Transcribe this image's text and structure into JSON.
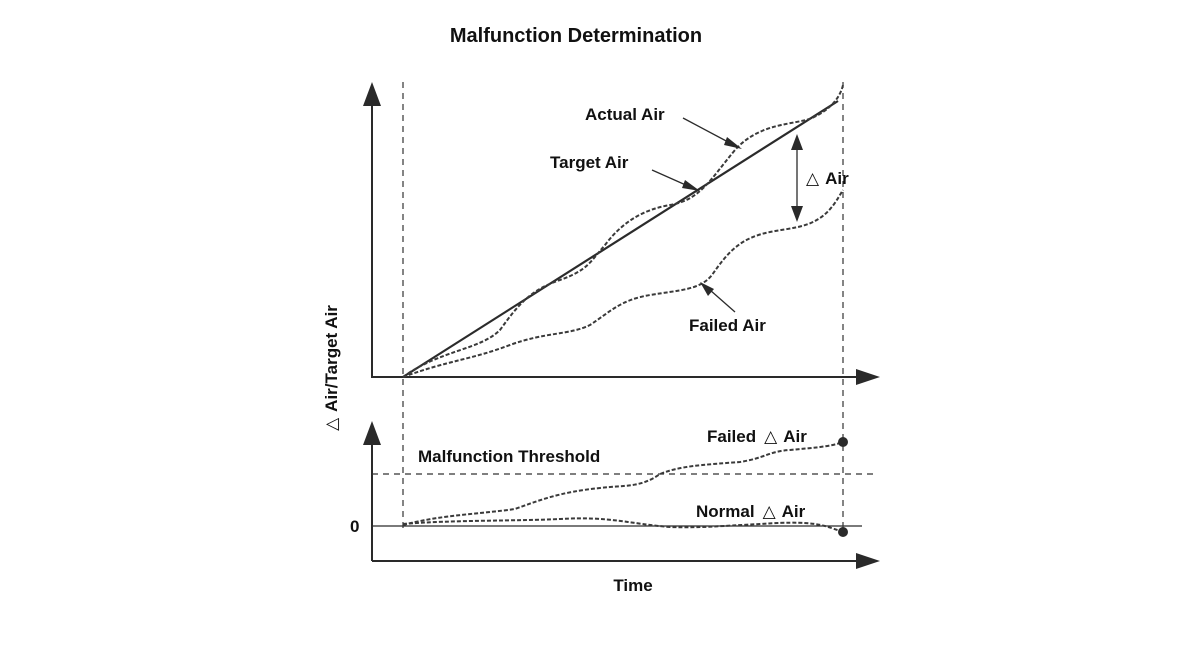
{
  "title": "Malfunction Determination",
  "labels": {
    "y_axis": "Air/Target Air",
    "y_axis_delta": "△",
    "x_axis": "Time",
    "actual_air": "Actual Air",
    "target_air": "Target Air",
    "failed_air": "Failed Air",
    "delta_air": "Air",
    "delta_symbol": "△",
    "malfunction_threshold": "Malfunction Threshold",
    "failed_delta_prefix": "Failed",
    "failed_delta_suffix": "Air",
    "normal_delta_prefix": "Normal",
    "normal_delta_suffix": "Air",
    "zero": "0"
  },
  "colors": {
    "ink": "#2b2b2b",
    "background": "#ffffff"
  }
}
